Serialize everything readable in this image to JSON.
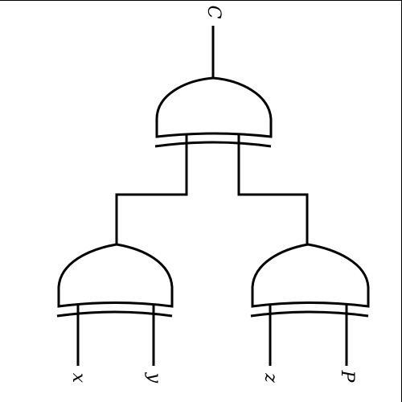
{
  "diagram": {
    "labels": {
      "output": "C",
      "input_x": "x",
      "input_y": "y",
      "input_z": "z",
      "input_p": "P"
    },
    "gates": [
      {
        "name": "top-gate",
        "type": "or"
      },
      {
        "name": "bottom-left-gate",
        "type": "or"
      },
      {
        "name": "bottom-right-gate",
        "type": "or"
      }
    ],
    "colors": {
      "stroke": "#000000",
      "background": "#ffffff"
    }
  }
}
